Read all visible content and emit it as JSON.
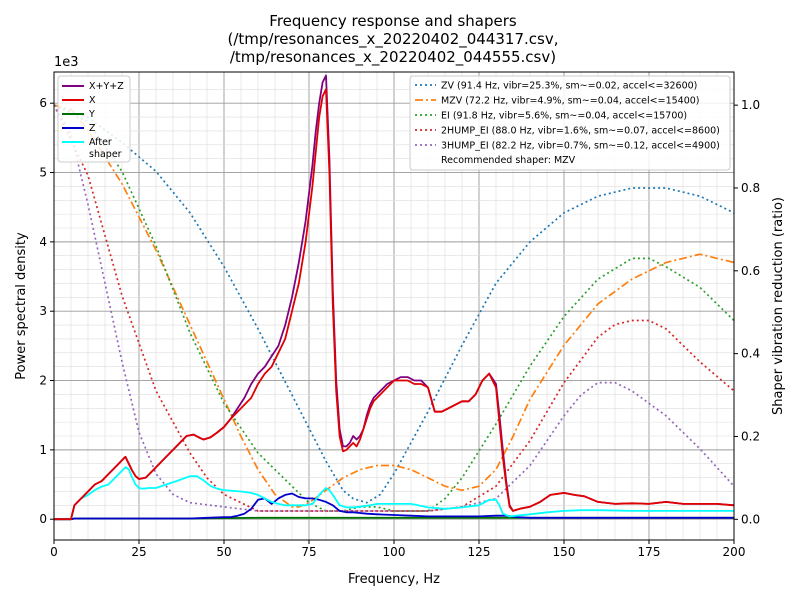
{
  "chart_data": {
    "type": "line",
    "title_lines": [
      "Frequency response and shapers",
      "(/tmp/resonances_x_20220402_044317.csv,",
      "/tmp/resonances_x_20220402_044555.csv)"
    ],
    "xlabel": "Frequency, Hz",
    "ylabel": "Power spectral density",
    "y2label": "Shaper vibration reduction (ratio)",
    "y_scale_label": "1e3",
    "xlim": [
      0,
      200
    ],
    "ylim": [
      -0.3,
      6.45
    ],
    "y2lim": [
      -0.05,
      1.08
    ],
    "xticks": [
      0,
      25,
      50,
      75,
      100,
      125,
      150,
      175,
      200
    ],
    "yticks": [
      0,
      1,
      2,
      3,
      4,
      5,
      6
    ],
    "y2ticks": [
      0.0,
      0.2,
      0.4,
      0.6,
      0.8,
      1.0
    ],
    "grid": true,
    "legend_left_position": "top-left",
    "legend_right_position": "top-right",
    "recommended_text": "Recommended shaper: MZV",
    "psd_series": [
      {
        "name": "X+Y+Z",
        "color": "#800080",
        "x": [
          0,
          5,
          6,
          8,
          10,
          12,
          14,
          16,
          18,
          20,
          21,
          22,
          23,
          24,
          25,
          27,
          29,
          31,
          33,
          35,
          37,
          39,
          41,
          43,
          44,
          46,
          48,
          50,
          52,
          54,
          56,
          58,
          60,
          62,
          64,
          66,
          68,
          70,
          72,
          74,
          76,
          77,
          78,
          79,
          80,
          81,
          82,
          83,
          84,
          85,
          86,
          87,
          88,
          89,
          90,
          91,
          92,
          93,
          94,
          95,
          96,
          97,
          98,
          100,
          102,
          104,
          106,
          108,
          110,
          112,
          114,
          116,
          118,
          120,
          122,
          124,
          126,
          128,
          130,
          131,
          132,
          133,
          134,
          135,
          137,
          140,
          143,
          146,
          150,
          153,
          156,
          160,
          165,
          170,
          175,
          180,
          185,
          190,
          195,
          200
        ],
        "y": [
          0,
          0,
          0.2,
          0.3,
          0.4,
          0.5,
          0.55,
          0.65,
          0.75,
          0.85,
          0.9,
          0.8,
          0.7,
          0.62,
          0.58,
          0.6,
          0.7,
          0.8,
          0.9,
          1,
          1.1,
          1.2,
          1.22,
          1.17,
          1.15,
          1.18,
          1.25,
          1.33,
          1.45,
          1.6,
          1.75,
          1.95,
          2.1,
          2.2,
          2.35,
          2.5,
          2.8,
          3.2,
          3.7,
          4.3,
          5.1,
          5.6,
          6,
          6.3,
          6.4,
          5.2,
          3.3,
          2,
          1.3,
          1.05,
          1.05,
          1.1,
          1.2,
          1.15,
          1.2,
          1.3,
          1.5,
          1.65,
          1.75,
          1.8,
          1.85,
          1.9,
          1.95,
          2,
          2.05,
          2.05,
          2,
          2,
          1.9,
          1.55,
          1.55,
          1.6,
          1.65,
          1.7,
          1.7,
          1.8,
          2,
          2.1,
          1.95,
          1.5,
          1,
          0.55,
          0.2,
          0.12,
          0.15,
          0.18,
          0.25,
          0.35,
          0.38,
          0.35,
          0.33,
          0.25,
          0.22,
          0.23,
          0.22,
          0.25,
          0.22,
          0.22,
          0.22,
          0.2
        ]
      },
      {
        "name": "X",
        "color": "#e00000",
        "x": [
          0,
          5,
          6,
          8,
          10,
          12,
          14,
          16,
          18,
          20,
          21,
          22,
          23,
          24,
          25,
          27,
          29,
          31,
          33,
          35,
          37,
          39,
          41,
          43,
          44,
          46,
          48,
          50,
          52,
          54,
          56,
          58,
          60,
          62,
          64,
          66,
          68,
          70,
          72,
          74,
          76,
          77,
          78,
          79,
          80,
          81,
          82,
          83,
          84,
          85,
          86,
          87,
          88,
          89,
          90,
          91,
          92,
          93,
          94,
          95,
          96,
          97,
          98,
          100,
          102,
          104,
          106,
          108,
          110,
          112,
          114,
          116,
          118,
          120,
          122,
          124,
          126,
          128,
          130,
          131,
          132,
          133,
          134,
          135,
          137,
          140,
          143,
          146,
          150,
          153,
          156,
          160,
          165,
          170,
          175,
          180,
          185,
          190,
          195,
          200
        ],
        "y": [
          0,
          0,
          0.2,
          0.3,
          0.4,
          0.5,
          0.55,
          0.65,
          0.75,
          0.85,
          0.9,
          0.8,
          0.7,
          0.62,
          0.58,
          0.6,
          0.7,
          0.8,
          0.9,
          1,
          1.1,
          1.2,
          1.22,
          1.17,
          1.15,
          1.18,
          1.25,
          1.33,
          1.45,
          1.55,
          1.65,
          1.75,
          1.95,
          2.1,
          2.2,
          2.4,
          2.6,
          3,
          3.4,
          4,
          4.8,
          5.3,
          5.8,
          6.1,
          6.2,
          5,
          3.1,
          1.85,
          1.2,
          0.98,
          1,
          1.05,
          1.1,
          1.05,
          1.15,
          1.3,
          1.45,
          1.6,
          1.7,
          1.75,
          1.8,
          1.85,
          1.9,
          2,
          2,
          2,
          1.95,
          1.95,
          1.9,
          1.55,
          1.55,
          1.6,
          1.65,
          1.7,
          1.7,
          1.8,
          2,
          2.1,
          1.9,
          1.4,
          0.9,
          0.5,
          0.18,
          0.12,
          0.15,
          0.18,
          0.25,
          0.35,
          0.38,
          0.35,
          0.33,
          0.25,
          0.22,
          0.23,
          0.22,
          0.25,
          0.22,
          0.22,
          0.22,
          0.2
        ]
      },
      {
        "name": "Y",
        "color": "#007000",
        "x": [
          0,
          5,
          6,
          10,
          20,
          40,
          60,
          80,
          100,
          120,
          140,
          160,
          180,
          200
        ],
        "y": [
          0,
          0,
          0.01,
          0.01,
          0.01,
          0.01,
          0.02,
          0.02,
          0.02,
          0.02,
          0.02,
          0.02,
          0.02,
          0.02
        ]
      },
      {
        "name": "Z",
        "color": "#0000cc",
        "x": [
          0,
          5,
          6,
          10,
          20,
          30,
          40,
          45,
          50,
          52,
          54,
          56,
          58,
          60,
          62,
          64,
          66,
          68,
          70,
          72,
          74,
          76,
          78,
          80,
          82,
          84,
          86,
          88,
          90,
          92,
          95,
          100,
          105,
          110,
          115,
          120,
          125,
          130,
          133,
          136,
          140,
          150,
          160,
          170,
          180,
          190,
          200
        ],
        "y": [
          0,
          0,
          0.01,
          0.01,
          0.01,
          0.01,
          0.01,
          0.02,
          0.03,
          0.03,
          0.05,
          0.08,
          0.15,
          0.28,
          0.3,
          0.22,
          0.3,
          0.35,
          0.37,
          0.32,
          0.3,
          0.3,
          0.28,
          0.25,
          0.2,
          0.12,
          0.1,
          0.1,
          0.09,
          0.08,
          0.07,
          0.06,
          0.05,
          0.04,
          0.04,
          0.04,
          0.04,
          0.05,
          0.05,
          0.03,
          0.02,
          0.02,
          0.02,
          0.02,
          0.02,
          0.02,
          0.02
        ]
      },
      {
        "name": "After shaper",
        "color": "#00ffff",
        "x": [
          0,
          5,
          6,
          8,
          10,
          12,
          14,
          16,
          18,
          20,
          21,
          22,
          23,
          24,
          25,
          26,
          28,
          30,
          33,
          36,
          40,
          42,
          44,
          46,
          48,
          50,
          55,
          58,
          60,
          62,
          64,
          66,
          68,
          70,
          72,
          74,
          76,
          78,
          80,
          81,
          82,
          84,
          86,
          88,
          90,
          93,
          95,
          100,
          105,
          110,
          115,
          120,
          125,
          128,
          130,
          131,
          132,
          134,
          136,
          140,
          145,
          150,
          155,
          160,
          170,
          180,
          190,
          200
        ],
        "y": [
          0,
          0,
          0.2,
          0.3,
          0.35,
          0.42,
          0.47,
          0.5,
          0.6,
          0.7,
          0.75,
          0.72,
          0.6,
          0.5,
          0.45,
          0.44,
          0.45,
          0.45,
          0.5,
          0.55,
          0.62,
          0.62,
          0.56,
          0.48,
          0.44,
          0.42,
          0.4,
          0.38,
          0.35,
          0.3,
          0.25,
          0.22,
          0.2,
          0.2,
          0.2,
          0.2,
          0.22,
          0.35,
          0.45,
          0.42,
          0.35,
          0.2,
          0.17,
          0.17,
          0.18,
          0.2,
          0.22,
          0.22,
          0.22,
          0.17,
          0.15,
          0.17,
          0.2,
          0.28,
          0.28,
          0.2,
          0.08,
          0.04,
          0.05,
          0.07,
          0.1,
          0.12,
          0.13,
          0.13,
          0.12,
          0.12,
          0.12,
          0.12
        ]
      }
    ],
    "shaper_series": [
      {
        "name": "ZV (91.4 Hz, vibr=25.3%, sm~=0.02, accel<=32600)",
        "color": "#1f77b4",
        "style": "dot",
        "x": [
          0,
          10,
          20,
          30,
          40,
          50,
          60,
          70,
          80,
          85,
          88,
          92,
          96,
          100,
          110,
          120,
          130,
          140,
          150,
          160,
          170,
          180,
          190,
          200
        ],
        "y": [
          1,
          0.97,
          0.91,
          0.84,
          0.74,
          0.61,
          0.46,
          0.3,
          0.14,
          0.07,
          0.05,
          0.04,
          0.06,
          0.11,
          0.26,
          0.42,
          0.57,
          0.67,
          0.74,
          0.78,
          0.8,
          0.8,
          0.78,
          0.74
        ]
      },
      {
        "name": "MZV (72.2 Hz, vibr=4.9%, sm~=0.04, accel<=15400)",
        "color": "#ff7f0e",
        "style": "dashdot",
        "x": [
          0,
          5,
          10,
          20,
          30,
          40,
          50,
          55,
          60,
          65,
          70,
          72,
          75,
          80,
          85,
          90,
          95,
          100,
          105,
          110,
          115,
          120,
          125,
          130,
          135,
          140,
          150,
          160,
          170,
          180,
          190,
          200
        ],
        "y": [
          1.0,
          0.99,
          0.94,
          0.81,
          0.65,
          0.47,
          0.29,
          0.2,
          0.12,
          0.06,
          0.03,
          0.03,
          0.04,
          0.07,
          0.1,
          0.12,
          0.13,
          0.13,
          0.12,
          0.1,
          0.08,
          0.07,
          0.08,
          0.12,
          0.2,
          0.29,
          0.42,
          0.52,
          0.58,
          0.62,
          0.64,
          0.62
        ]
      },
      {
        "name": "EI (91.8 Hz, vibr=5.6%, sm~=0.04, accel<=15700)",
        "color": "#2ca02c",
        "style": "dot",
        "x": [
          0,
          10,
          20,
          30,
          40,
          50,
          60,
          70,
          75,
          80,
          85,
          90,
          95,
          100,
          110,
          115,
          120,
          130,
          140,
          150,
          160,
          170,
          175,
          180,
          190,
          200
        ],
        "y": [
          1.0,
          0.96,
          0.84,
          0.66,
          0.45,
          0.28,
          0.16,
          0.08,
          0.04,
          0.02,
          0.02,
          0.03,
          0.03,
          0.02,
          0.02,
          0.05,
          0.1,
          0.23,
          0.37,
          0.49,
          0.58,
          0.63,
          0.63,
          0.61,
          0.56,
          0.48
        ]
      },
      {
        "name": "2HUMP_EI (88.0 Hz, vibr=1.6%, sm~=0.07, accel<=8600)",
        "color": "#d62728",
        "style": "dot",
        "x": [
          0,
          10,
          20,
          30,
          40,
          45,
          50,
          55,
          60,
          65,
          70,
          80,
          90,
          100,
          110,
          120,
          130,
          140,
          150,
          160,
          165,
          170,
          175,
          180,
          190,
          200
        ],
        "y": [
          1.0,
          0.83,
          0.54,
          0.31,
          0.16,
          0.1,
          0.06,
          0.04,
          0.02,
          0.02,
          0.02,
          0.02,
          0.02,
          0.02,
          0.02,
          0.03,
          0.08,
          0.19,
          0.33,
          0.44,
          0.47,
          0.48,
          0.48,
          0.46,
          0.38,
          0.31
        ]
      },
      {
        "name": "3HUMP_EI (82.2 Hz, vibr=0.7%, sm~=0.12, accel<=4900)",
        "color": "#9467bd",
        "style": "dot",
        "x": [
          0,
          5,
          10,
          15,
          20,
          25,
          30,
          35,
          40,
          50,
          60,
          70,
          80,
          90,
          100,
          110,
          120,
          130,
          140,
          150,
          155,
          160,
          165,
          170,
          180,
          190,
          200
        ],
        "y": [
          1.0,
          0.93,
          0.76,
          0.57,
          0.38,
          0.21,
          0.11,
          0.06,
          0.04,
          0.03,
          0.02,
          0.02,
          0.02,
          0.02,
          0.02,
          0.02,
          0.03,
          0.05,
          0.13,
          0.25,
          0.3,
          0.33,
          0.33,
          0.31,
          0.25,
          0.17,
          0.08
        ]
      }
    ]
  }
}
